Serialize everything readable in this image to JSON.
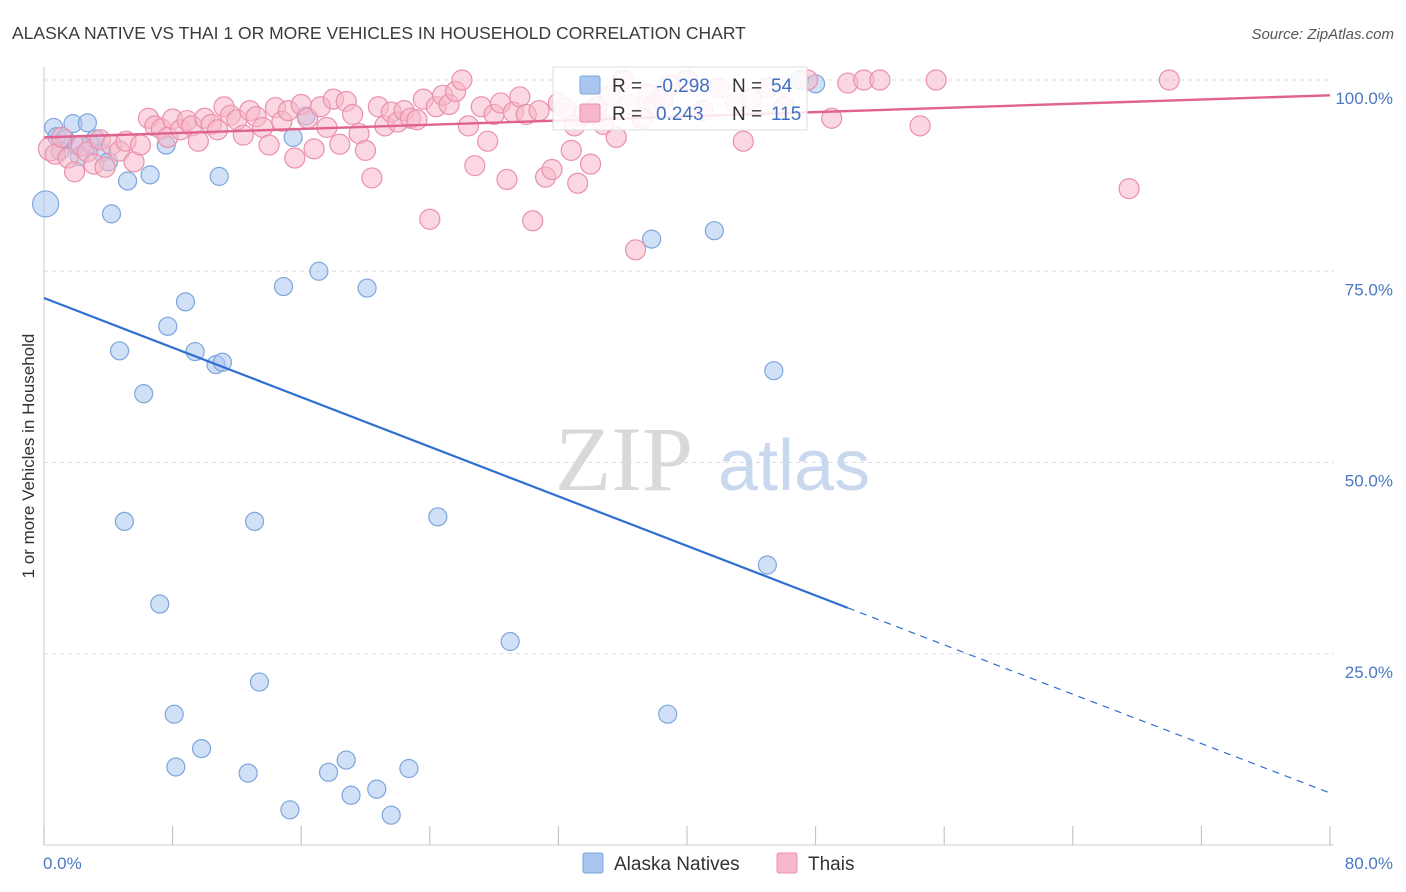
{
  "title": "ALASKA NATIVE VS THAI 1 OR MORE VEHICLES IN HOUSEHOLD CORRELATION CHART",
  "source": "Source: ZipAtlas.com",
  "watermark": {
    "zip": "ZIP",
    "atlas": "atlas"
  },
  "colors": {
    "blue_fill": "#a9c6ef",
    "blue_stroke": "#7ea5dc",
    "blue_line": "#2f6fd0",
    "pink_fill": "#f5b7c9",
    "pink_stroke": "#ea90ad",
    "pink_line": "#e0628f",
    "grid": "#dddddd",
    "tick_text": "#4a78c2"
  },
  "legend": {
    "rows": [
      {
        "r_label": "R =",
        "r_value": "-0.298",
        "n_label": "N =",
        "n_value": "54"
      },
      {
        "r_label": "R =",
        "r_value": "0.243",
        "n_label": "N =",
        "n_value": "115"
      }
    ]
  },
  "chart_data": {
    "type": "scatter",
    "title": "ALASKA NATIVE VS THAI 1 OR MORE VEHICLES IN HOUSEHOLD CORRELATION CHART",
    "xlabel": "",
    "ylabel": "1 or more Vehicles in Household",
    "xlim": [
      0,
      80
    ],
    "ylim": [
      0,
      105
    ],
    "x_tick_labels": [
      "0.0%",
      "80.0%"
    ],
    "y_ticks": [
      25,
      50,
      75,
      100
    ],
    "y_tick_labels": [
      "25.0%",
      "50.0%",
      "75.0%",
      "100.0%"
    ],
    "grid": true,
    "legend_position": "top-center",
    "series": [
      {
        "name": "Alaska Natives",
        "color": "#a9c6ef",
        "trend": {
          "x0": 0,
          "y0": 71.5,
          "x1": 50,
          "y1": 31,
          "dashed_to_x": 80,
          "dashed_to_y": 6.8
        },
        "points": [
          [
            0.1,
            83.8,
            13
          ],
          [
            0.6,
            93.8,
            9
          ],
          [
            0.8,
            92.6,
            9
          ],
          [
            1.0,
            90.7,
            9
          ],
          [
            1.3,
            92.3,
            9
          ],
          [
            1.8,
            94.3,
            9
          ],
          [
            2.0,
            91.5,
            9
          ],
          [
            2.7,
            94.4,
            9
          ],
          [
            2.9,
            91.6,
            9
          ],
          [
            3.2,
            92.3,
            9
          ],
          [
            3.6,
            90.5,
            9
          ],
          [
            4.0,
            89.3,
            9
          ],
          [
            4.2,
            82.5,
            9
          ],
          [
            5.2,
            86.8,
            9
          ],
          [
            6.6,
            87.6,
            9
          ],
          [
            7.6,
            91.5,
            9
          ],
          [
            10.9,
            87.4,
            9
          ],
          [
            15.5,
            92.5,
            9
          ],
          [
            16.3,
            95.3,
            9
          ],
          [
            6.2,
            59.0,
            9
          ],
          [
            4.7,
            64.6,
            9
          ],
          [
            7.7,
            67.8,
            9
          ],
          [
            8.8,
            71.0,
            9
          ],
          [
            9.4,
            64.5,
            9
          ],
          [
            10.7,
            62.8,
            9
          ],
          [
            11.1,
            63.1,
            9
          ],
          [
            14.9,
            73.0,
            9
          ],
          [
            17.1,
            75.0,
            9
          ],
          [
            20.1,
            72.8,
            9
          ],
          [
            5.0,
            42.3,
            9
          ],
          [
            13.1,
            42.3,
            9
          ],
          [
            24.5,
            42.9,
            9
          ],
          [
            7.2,
            31.5,
            9
          ],
          [
            29.0,
            26.6,
            9
          ],
          [
            13.4,
            21.3,
            9
          ],
          [
            8.1,
            17.1,
            9
          ],
          [
            8.2,
            10.2,
            9
          ],
          [
            9.8,
            12.6,
            9
          ],
          [
            12.7,
            9.4,
            9
          ],
          [
            15.3,
            4.6,
            9
          ],
          [
            17.7,
            9.5,
            9
          ],
          [
            18.8,
            11.1,
            9
          ],
          [
            19.1,
            6.5,
            9
          ],
          [
            20.7,
            7.3,
            9
          ],
          [
            21.6,
            3.9,
            9
          ],
          [
            22.7,
            10.0,
            9
          ],
          [
            37.8,
            79.2,
            9
          ],
          [
            41.7,
            80.3,
            9
          ],
          [
            45.4,
            62.0,
            9
          ],
          [
            45.0,
            36.6,
            9
          ],
          [
            38.8,
            17.1,
            9
          ],
          [
            47.0,
            100.0,
            9
          ],
          [
            48.0,
            99.5,
            9
          ],
          [
            2.2,
            90.0,
            9
          ]
        ]
      },
      {
        "name": "Thais",
        "color": "#f5b7c9",
        "trend": {
          "x0": 0,
          "y0": 92.5,
          "x1": 80,
          "y1": 98
        },
        "points": [
          [
            0.4,
            91.0,
            12
          ],
          [
            0.7,
            90.3,
            10
          ],
          [
            1.1,
            92.5,
            10
          ],
          [
            1.5,
            89.8,
            10
          ],
          [
            1.9,
            88.0,
            10
          ],
          [
            2.3,
            91.4,
            10
          ],
          [
            2.7,
            90.6,
            10
          ],
          [
            3.1,
            89.0,
            10
          ],
          [
            3.5,
            92.2,
            10
          ],
          [
            3.8,
            88.6,
            10
          ],
          [
            4.2,
            91.5,
            10
          ],
          [
            4.7,
            90.7,
            10
          ],
          [
            5.1,
            92.0,
            10
          ],
          [
            5.6,
            89.3,
            10
          ],
          [
            6.0,
            91.5,
            10
          ],
          [
            6.5,
            95.0,
            10
          ],
          [
            6.9,
            94.0,
            10
          ],
          [
            7.3,
            93.6,
            10
          ],
          [
            7.7,
            92.5,
            10
          ],
          [
            8.0,
            94.9,
            10
          ],
          [
            8.5,
            93.5,
            10
          ],
          [
            8.9,
            94.7,
            10
          ],
          [
            9.2,
            94.0,
            10
          ],
          [
            9.6,
            92.0,
            10
          ],
          [
            10.0,
            95.0,
            10
          ],
          [
            10.4,
            94.2,
            10
          ],
          [
            10.8,
            93.5,
            10
          ],
          [
            11.2,
            96.5,
            10
          ],
          [
            11.6,
            95.4,
            10
          ],
          [
            12.0,
            94.8,
            10
          ],
          [
            12.4,
            92.8,
            10
          ],
          [
            12.8,
            96.0,
            10
          ],
          [
            13.2,
            95.2,
            10
          ],
          [
            13.6,
            93.8,
            10
          ],
          [
            14.0,
            91.5,
            10
          ],
          [
            14.4,
            96.4,
            10
          ],
          [
            14.8,
            94.6,
            10
          ],
          [
            15.2,
            96.0,
            10
          ],
          [
            15.6,
            89.8,
            10
          ],
          [
            16.0,
            96.8,
            10
          ],
          [
            16.4,
            95.0,
            10
          ],
          [
            16.8,
            91.0,
            10
          ],
          [
            17.2,
            96.5,
            10
          ],
          [
            17.6,
            93.8,
            10
          ],
          [
            18.0,
            97.5,
            10
          ],
          [
            18.4,
            91.6,
            10
          ],
          [
            18.8,
            97.2,
            10
          ],
          [
            19.2,
            95.5,
            10
          ],
          [
            19.6,
            93.0,
            10
          ],
          [
            20.0,
            90.8,
            10
          ],
          [
            20.4,
            87.2,
            10
          ],
          [
            20.8,
            96.5,
            10
          ],
          [
            21.2,
            94.0,
            10
          ],
          [
            21.6,
            95.8,
            10
          ],
          [
            22.0,
            94.5,
            10
          ],
          [
            22.4,
            96.0,
            10
          ],
          [
            22.8,
            95.0,
            10
          ],
          [
            23.2,
            94.8,
            10
          ],
          [
            23.6,
            97.5,
            10
          ],
          [
            24.0,
            81.8,
            10
          ],
          [
            24.4,
            96.5,
            10
          ],
          [
            24.8,
            98.0,
            10
          ],
          [
            25.2,
            96.8,
            10
          ],
          [
            25.6,
            98.5,
            10
          ],
          [
            26.0,
            100.0,
            10
          ],
          [
            26.4,
            94.0,
            10
          ],
          [
            26.8,
            88.8,
            10
          ],
          [
            27.2,
            96.5,
            10
          ],
          [
            27.6,
            92.0,
            10
          ],
          [
            28.0,
            95.5,
            10
          ],
          [
            28.4,
            97.0,
            10
          ],
          [
            28.8,
            87.0,
            10
          ],
          [
            29.2,
            95.8,
            10
          ],
          [
            29.6,
            97.8,
            10
          ],
          [
            30.0,
            95.5,
            10
          ],
          [
            30.4,
            81.6,
            10
          ],
          [
            30.8,
            96.0,
            10
          ],
          [
            31.2,
            87.3,
            10
          ],
          [
            31.6,
            88.3,
            10
          ],
          [
            32.0,
            97.0,
            10
          ],
          [
            32.4,
            96.3,
            10
          ],
          [
            32.8,
            90.8,
            10
          ],
          [
            33.2,
            86.5,
            10
          ],
          [
            33.6,
            95.5,
            10
          ],
          [
            34.0,
            89.0,
            10
          ],
          [
            34.4,
            96.5,
            10
          ],
          [
            34.8,
            94.2,
            10
          ],
          [
            35.2,
            98.0,
            10
          ],
          [
            35.6,
            92.5,
            10
          ],
          [
            36.0,
            100.0,
            10
          ],
          [
            36.4,
            96.8,
            10
          ],
          [
            36.8,
            77.8,
            10
          ],
          [
            37.2,
            95.0,
            10
          ],
          [
            37.6,
            98.2,
            10
          ],
          [
            38.0,
            96.8,
            10
          ],
          [
            38.5,
            97.5,
            10
          ],
          [
            39.0,
            99.3,
            10
          ],
          [
            40.0,
            100.0,
            10
          ],
          [
            41.0,
            96.0,
            10
          ],
          [
            42.0,
            99.0,
            10
          ],
          [
            43.0,
            97.0,
            10
          ],
          [
            43.5,
            92.0,
            10
          ],
          [
            44.0,
            97.5,
            10
          ],
          [
            45.0,
            99.0,
            10
          ],
          [
            46.0,
            96.5,
            10
          ],
          [
            47.5,
            100.0,
            10
          ],
          [
            49.0,
            95.0,
            10
          ],
          [
            50.0,
            99.6,
            10
          ],
          [
            51.0,
            100.0,
            10
          ],
          [
            52.0,
            100.0,
            10
          ],
          [
            54.5,
            94.0,
            10
          ],
          [
            55.5,
            100.0,
            10
          ],
          [
            67.5,
            85.8,
            10
          ],
          [
            70.0,
            100.0,
            10
          ],
          [
            33.0,
            94.0,
            10
          ]
        ]
      }
    ]
  },
  "bottom_legend": {
    "items": [
      "Alaska Natives",
      "Thais"
    ]
  }
}
